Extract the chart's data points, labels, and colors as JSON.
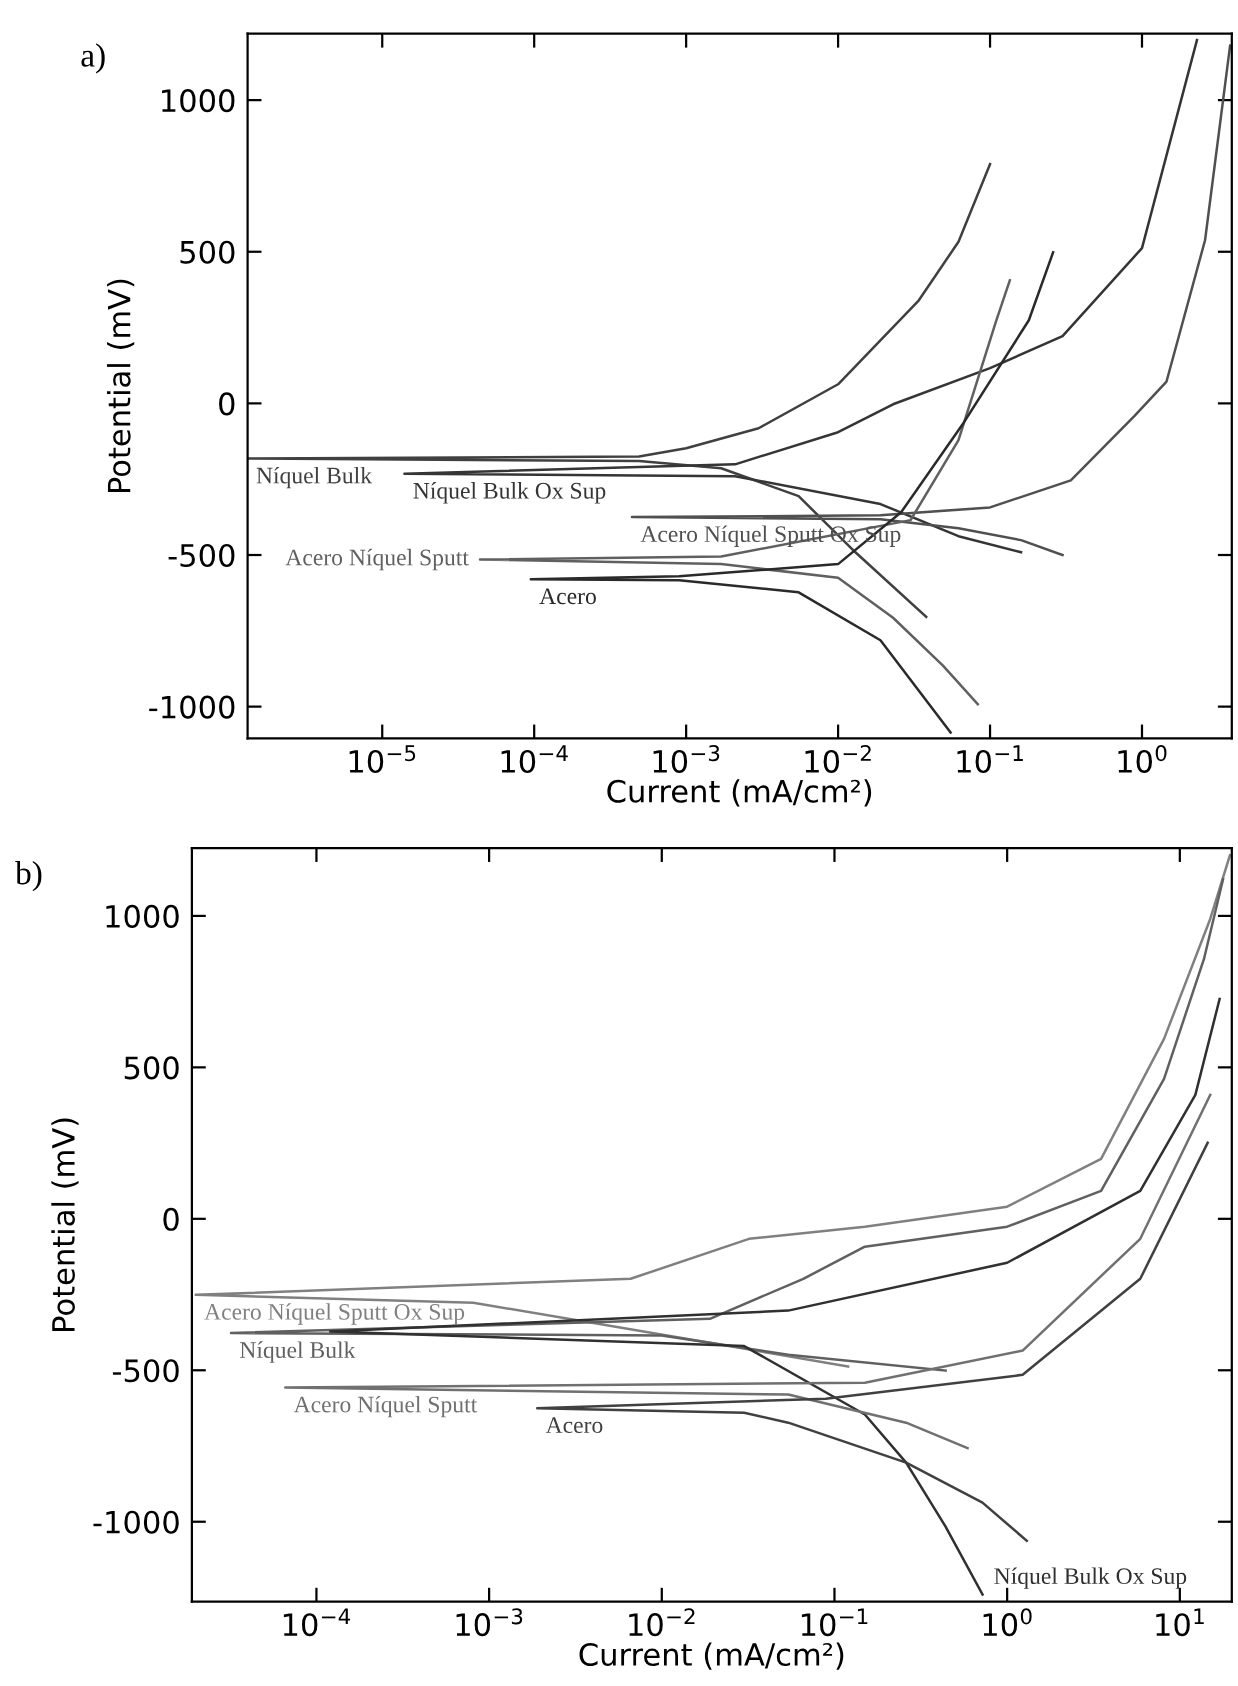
{
  "chart_data": [
    {
      "type": "line",
      "title": "a)",
      "xlabel": "Current (mA/cm²)",
      "ylabel": "Potential (mV)",
      "log": "x",
      "grid": false,
      "marker": "none",
      "line_style": "solid",
      "xlim": [
        1.3e-06,
        3.9
      ],
      "ylim": [
        -1105,
        1219
      ],
      "xticks": [
        {
          "value": 1e-05,
          "label": "10$^{−5}$"
        },
        {
          "value": 0.0001,
          "label": "10$^{−4}$"
        },
        {
          "value": 0.001,
          "label": "10$^{−3}$"
        },
        {
          "value": 0.01,
          "label": "10$^{−2}$"
        },
        {
          "value": 0.1,
          "label": "10$^{−1}$"
        },
        {
          "value": 1,
          "label": "10$^{0}$"
        }
      ],
      "yticks": [
        -1000,
        -500,
        0,
        500,
        1000
      ],
      "series": [
        {
          "name": "Níquel Bulk",
          "color": "#404040",
          "x": [
            0.038,
            0.013,
            0.0055,
            0.0017,
            0.00049,
            1.3e-06,
            0.00049,
            0.001,
            0.003,
            0.01,
            0.034,
            0.062,
            0.1
          ],
          "values": [
            -704,
            -491,
            -306,
            -214,
            -190,
            -182,
            -175,
            -148,
            -82,
            63,
            340,
            533,
            789
          ]
        },
        {
          "name": "Níquel Bulk Ox Sup",
          "color": "#353535",
          "x": [
            0.16,
            0.062,
            0.019,
            0.0021,
            1.4e-05,
            0.0021,
            0.01,
            0.023,
            0.1,
            0.3,
            1,
            2.3
          ],
          "values": [
            -491,
            -438,
            -332,
            -240,
            -232,
            -201,
            -95,
            -3,
            116,
            222,
            512,
            1198
          ]
        },
        {
          "name": "Acero Níquel Sputt Ox Sup",
          "color": "#505050",
          "x": [
            0.3,
            0.16,
            0.062,
            0.019,
            0.00044,
            0.019,
            0.1,
            0.34,
            0.89,
            1.45,
            2.6,
            3.8
          ],
          "values": [
            -500,
            -451,
            -412,
            -382,
            -375,
            -369,
            -343,
            -254,
            -42,
            72,
            538,
            1180
          ]
        },
        {
          "name": "Acero Níquel Sputt",
          "color": "#606060",
          "x": [
            0.083,
            0.049,
            0.023,
            0.01,
            0.0017,
            4.4e-05,
            0.0017,
            0.03,
            0.062,
            0.11,
            0.135
          ],
          "values": [
            -992,
            -865,
            -707,
            -575,
            -530,
            -515,
            -505,
            -385,
            -121,
            274,
            406
          ]
        },
        {
          "name": "Acero",
          "color": "#2a2a2a",
          "x": [
            0.055,
            0.019,
            0.0055,
            0.0009,
            9.5e-05,
            0.0009,
            0.01,
            0.026,
            0.066,
            0.18,
            0.26
          ],
          "values": [
            -1085,
            -781,
            -623,
            -583,
            -580,
            -570,
            -530,
            -359,
            -69,
            274,
            498
          ]
        }
      ]
    },
    {
      "type": "line",
      "title": "b)",
      "xlabel": "Current (mA/cm²)",
      "ylabel": "Potential (mV)",
      "log": "x",
      "grid": false,
      "marker": "none",
      "line_style": "solid",
      "xlim": [
        1.9e-05,
        20
      ],
      "ylim": [
        -1264,
        1224
      ],
      "xticks": [
        {
          "value": 0.0001,
          "label": "10$^{−4}$"
        },
        {
          "value": 0.001,
          "label": "10$^{−3}$"
        },
        {
          "value": 0.01,
          "label": "10$^{−2}$"
        },
        {
          "value": 0.1,
          "label": "10$^{−1}$"
        },
        {
          "value": 1,
          "label": "10$^{0}$"
        },
        {
          "value": 10,
          "label": "10$^{1}$"
        }
      ],
      "yticks": [
        -1000,
        -500,
        0,
        500,
        1000
      ],
      "series": [
        {
          "name": "Acero Níquel Sputt Ox Sup",
          "color": "#808080",
          "x": [
            0.12,
            0.019,
            0.00081,
            2e-05,
            0.0066,
            0.032,
            0.15,
            1,
            3.5,
            8.1,
            15,
            19.5
          ],
          "values": [
            -488,
            -409,
            -277,
            -251,
            -198,
            -66,
            -26,
            40,
            198,
            594,
            990,
            1200
          ]
        },
        {
          "name": "Níquel Bulk",
          "color": "#606060",
          "x": [
            0.44,
            0.054,
            0.01,
            3.2e-05,
            0.019,
            0.066,
            0.15,
            1,
            3.5,
            8.1,
            13.8,
            17.8
          ],
          "values": [
            -501,
            -449,
            -385,
            -377,
            -330,
            -198,
            -92,
            -26,
            92,
            462,
            858,
            1121
          ]
        },
        {
          "name": "Níquel Bulk Ox Sup",
          "color": "#303030",
          "x": [
            0.72,
            0.44,
            0.26,
            0.15,
            0.03,
            0.00012,
            0.054,
            1,
            5.9,
            12.3,
            17
          ],
          "values": [
            -1240,
            -1016,
            -805,
            -646,
            -420,
            -372,
            -303,
            -145,
            92,
            409,
            726
          ]
        },
        {
          "name": "Acero Níquel Sputt",
          "color": "#707070",
          "x": [
            0.59,
            0.26,
            0.054,
            6.6e-05,
            0.15,
            1.23,
            5.9,
            15
          ],
          "values": [
            -757,
            -673,
            -580,
            -557,
            -541,
            -435,
            -66,
            409
          ]
        },
        {
          "name": "Acero",
          "color": "#404040",
          "x": [
            1.3,
            0.72,
            0.26,
            0.054,
            0.03,
            0.0019,
            0.089,
            1.23,
            5.9,
            14.5
          ],
          "values": [
            -1063,
            -937,
            -805,
            -673,
            -640,
            -625,
            -594,
            -515,
            -198,
            251
          ]
        }
      ]
    }
  ]
}
